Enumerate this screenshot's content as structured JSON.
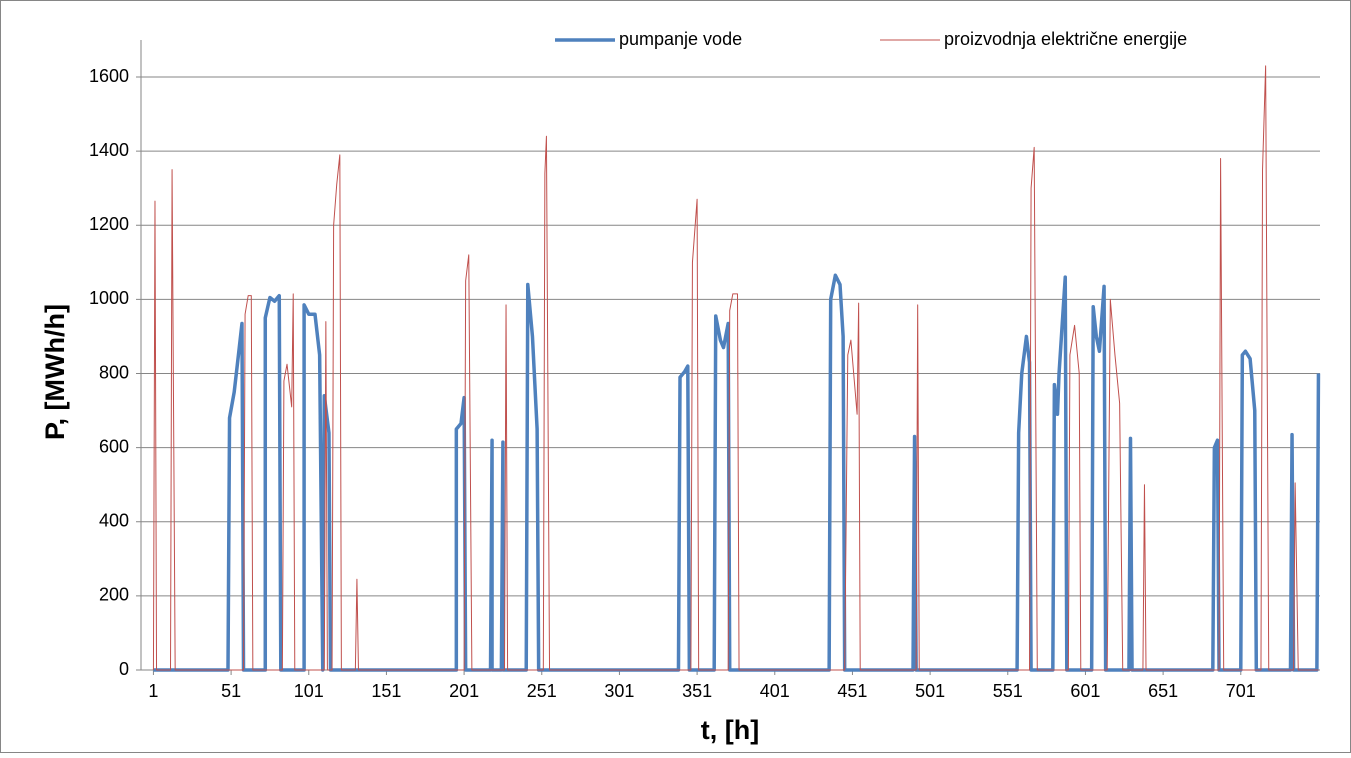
{
  "chart_data": {
    "type": "line",
    "xlabel": "t, [h]",
    "ylabel": "P, [MWh/h]",
    "xlim": [
      -7,
      752
    ],
    "xticks": [
      1,
      51,
      101,
      151,
      201,
      251,
      301,
      351,
      401,
      451,
      501,
      551,
      601,
      651,
      701
    ],
    "ylim": [
      0,
      1600
    ],
    "yticks": [
      0,
      200,
      400,
      600,
      800,
      1000,
      1200,
      1400,
      1600
    ],
    "grid": true,
    "legend": "top",
    "series": [
      {
        "name": "pumpanje vode",
        "color": "#4f81bd",
        "x": [
          1,
          49,
          50,
          53,
          56,
          58,
          59,
          73,
          73,
          76,
          79,
          82,
          83,
          98,
          98,
          101,
          105,
          108,
          110,
          111,
          114,
          115,
          196,
          196,
          199,
          201,
          202,
          218,
          219,
          219,
          225,
          226,
          226,
          241,
          242,
          245,
          248,
          249,
          339,
          340,
          343,
          345,
          346,
          362,
          363,
          366,
          368,
          371,
          372,
          436,
          437,
          440,
          443,
          445,
          446,
          490,
          491,
          492,
          557,
          558,
          560,
          563,
          565,
          566,
          580,
          581,
          583,
          584,
          588,
          589,
          605,
          606,
          608,
          610,
          613,
          614,
          629,
          630,
          631,
          683,
          684,
          686,
          687,
          701,
          702,
          704,
          707,
          710,
          711,
          733,
          734,
          735,
          750,
          751
        ],
        "values": [
          0,
          0,
          680,
          750,
          860,
          935,
          0,
          0,
          950,
          1005,
          995,
          1010,
          0,
          0,
          985,
          960,
          960,
          850,
          0,
          740,
          640,
          0,
          0,
          650,
          665,
          735,
          0,
          0,
          620,
          0,
          0,
          615,
          0,
          0,
          1040,
          900,
          650,
          0,
          0,
          790,
          805,
          820,
          0,
          0,
          955,
          890,
          870,
          935,
          0,
          0,
          1000,
          1065,
          1040,
          900,
          0,
          0,
          630,
          0,
          0,
          640,
          800,
          900,
          830,
          0,
          0,
          770,
          690,
          800,
          1060,
          0,
          0,
          980,
          900,
          860,
          1035,
          0,
          0,
          625,
          0,
          0,
          600,
          620,
          0,
          0,
          850,
          860,
          840,
          700,
          0,
          0,
          635,
          0,
          0,
          800
        ]
      },
      {
        "name": "proizvodnja električne energije",
        "color": "#c0504d",
        "x": [
          1,
          2,
          3,
          12,
          13,
          15,
          59,
          60,
          62,
          64,
          65,
          84,
          85,
          87,
          90,
          91,
          92,
          111,
          112,
          113,
          116,
          117,
          119,
          121,
          122,
          131,
          132,
          133,
          201,
          202,
          204,
          206,
          227,
          228,
          229,
          252,
          253,
          254,
          256,
          347,
          348,
          351,
          352,
          371,
          372,
          374,
          377,
          378,
          446,
          448,
          450,
          454,
          455,
          456,
          492,
          493,
          494,
          565,
          566,
          568,
          570,
          590,
          591,
          594,
          597,
          598,
          615,
          617,
          620,
          623,
          625,
          638,
          639,
          640,
          687,
          688,
          690,
          714,
          715,
          717,
          719,
          735,
          736,
          738,
          751
        ],
        "values": [
          0,
          1265,
          0,
          0,
          1350,
          0,
          0,
          960,
          1010,
          1010,
          0,
          0,
          780,
          825,
          710,
          1015,
          0,
          0,
          940,
          0,
          0,
          1200,
          1310,
          1390,
          0,
          0,
          245,
          0,
          0,
          1050,
          1120,
          0,
          0,
          985,
          0,
          0,
          1340,
          1440,
          0,
          0,
          1100,
          1270,
          0,
          0,
          970,
          1015,
          1015,
          0,
          0,
          850,
          890,
          690,
          990,
          0,
          0,
          985,
          0,
          0,
          1300,
          1410,
          0,
          0,
          850,
          930,
          800,
          0,
          0,
          1000,
          850,
          720,
          0,
          0,
          500,
          0,
          0,
          1380,
          0,
          0,
          1350,
          1630,
          0,
          0,
          505,
          0,
          0
        ]
      }
    ]
  }
}
